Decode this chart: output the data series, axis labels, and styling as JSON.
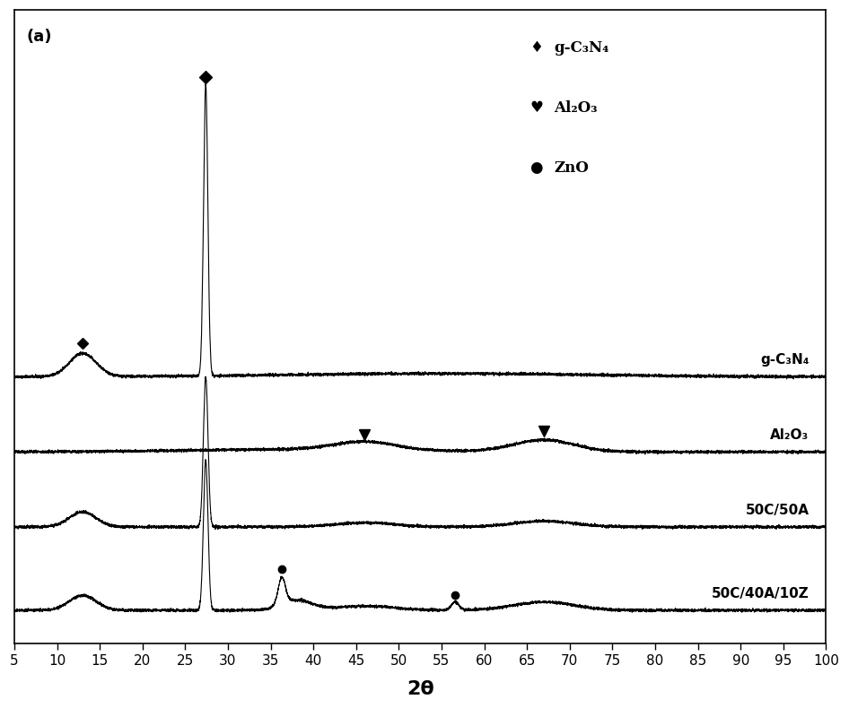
{
  "title": "(a)",
  "xlabel": "2θ",
  "xlim": [
    5,
    100
  ],
  "xticks": [
    5,
    10,
    15,
    20,
    25,
    30,
    35,
    40,
    45,
    50,
    55,
    60,
    65,
    70,
    75,
    80,
    85,
    90,
    95,
    100
  ],
  "background_color": "#ffffff",
  "line_color": "#000000",
  "offsets": [
    2.8,
    1.9,
    1.0,
    0.0
  ],
  "labels": [
    "g-C₃N₄",
    "Al₂O₃",
    "50C/50A",
    "50C/40A/10Z"
  ],
  "legend_items": [
    {
      "marker": "♦",
      "label": "g-C₃N₄"
    },
    {
      "marker": "♥",
      "label": "Al₂O₃"
    },
    {
      "marker": "●",
      "label": "ZnO"
    }
  ]
}
